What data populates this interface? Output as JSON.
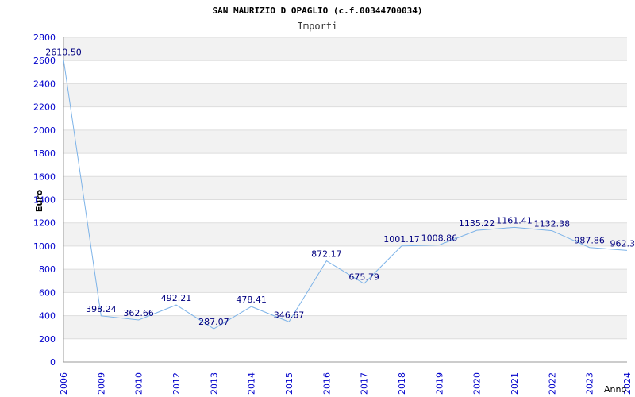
{
  "chart_data": {
    "type": "line",
    "title": "SAN MAURIZIO D OPAGLIO (c.f.00344700034)",
    "subtitle": "Importi",
    "xlabel": "Anno",
    "ylabel": "Euro",
    "ylim": [
      0,
      2800
    ],
    "yticks": [
      0,
      200,
      400,
      600,
      800,
      1000,
      1200,
      1400,
      1600,
      1800,
      2000,
      2200,
      2400,
      2600,
      2800
    ],
    "categories": [
      "2006",
      "2009",
      "2010",
      "2012",
      "2013",
      "2014",
      "2015",
      "2016",
      "2017",
      "2018",
      "2019",
      "2020",
      "2021",
      "2022",
      "2023",
      "2024"
    ],
    "values": [
      2610.5,
      398.24,
      362.66,
      492.21,
      287.07,
      478.41,
      346.67,
      872.17,
      675.79,
      1001.17,
      1008.86,
      1135.22,
      1161.41,
      1132.38,
      987.86,
      962.3
    ],
    "data_labels": [
      "2610.50",
      "398.24",
      "362.66",
      "492.21",
      "287.07",
      "478.41",
      "346.67",
      "872.17",
      "675.79",
      "1001.17",
      "1008.86",
      "1135.22",
      "1161.41",
      "1132.38",
      "987.86",
      "962.3"
    ],
    "grid": true,
    "colors": {
      "line": "#7db3e8",
      "label": "#000080",
      "axis_text": "#0000cc",
      "band": "#f2f2f2",
      "grid": "#dddddd"
    }
  }
}
